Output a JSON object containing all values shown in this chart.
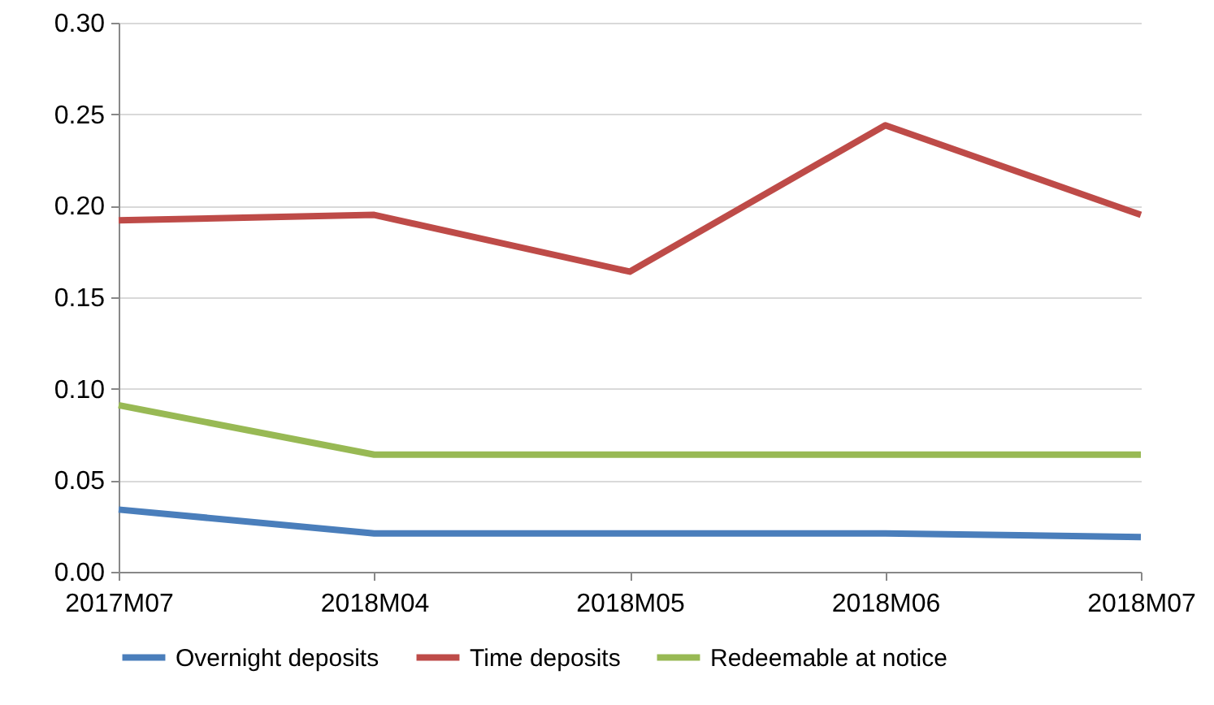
{
  "chart_data": {
    "type": "line",
    "categories": [
      "2017M07",
      "2018M04",
      "2018M05",
      "2018M06",
      "2018M07"
    ],
    "series": [
      {
        "name": "Overnight deposits",
        "color": "#4a7ebb",
        "values": [
          0.034,
          0.021,
          0.021,
          0.021,
          0.019
        ]
      },
      {
        "name": "Time deposits",
        "color": "#be4b48",
        "values": [
          0.192,
          0.195,
          0.164,
          0.244,
          0.195
        ]
      },
      {
        "name": "Redeemable at notice",
        "color": "#98b954",
        "values": [
          0.091,
          0.064,
          0.064,
          0.064,
          0.064
        ]
      }
    ],
    "ylim": [
      0,
      0.3
    ],
    "yticks": [
      {
        "value": 0,
        "label": "0.00"
      },
      {
        "value": 0.05,
        "label": "0.05"
      },
      {
        "value": 0.1,
        "label": "0.10"
      },
      {
        "value": 0.15,
        "label": "0.15"
      },
      {
        "value": 0.2,
        "label": "0.20"
      },
      {
        "value": 0.25,
        "label": "0.25"
      },
      {
        "value": 0.3,
        "label": "0.30"
      }
    ],
    "grid": "y",
    "legend": "bottom",
    "marker": "none",
    "line_style": "solid"
  }
}
